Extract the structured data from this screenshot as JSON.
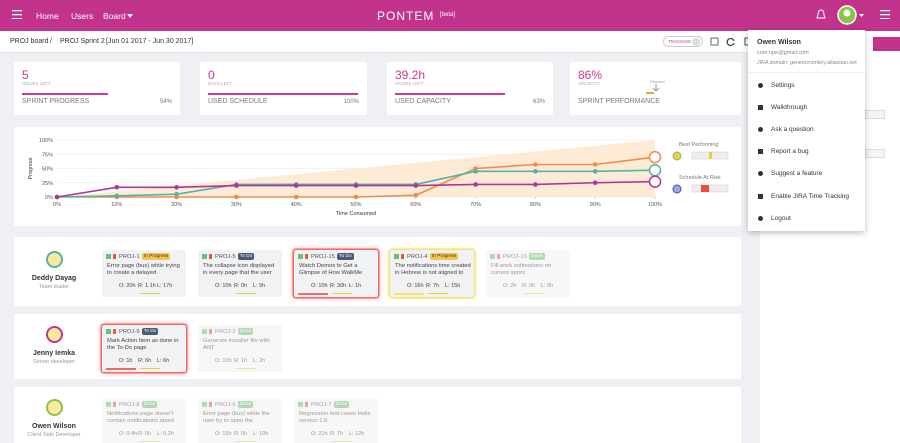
{
  "nav": {
    "items": [
      "Home",
      "Users",
      "Board"
    ],
    "logo": "PONTEM",
    "badge": "[beta]"
  },
  "breadcrumb": {
    "board": "PROJ board",
    "separator": "/",
    "sprint": "PROJ Sprint 2",
    "dates": "[Jun 01 2017 - Jun 30 2017]",
    "tracking": "TRACKING"
  },
  "stats": [
    {
      "value": "5",
      "caption": "ISSUES LEFT",
      "label": "SPRINT PROGRESS",
      "percent": "54%"
    },
    {
      "value": "0",
      "caption": "DAYS LEFT",
      "label": "USED SCHEDULE",
      "percent": "100%"
    },
    {
      "value": "39.2h",
      "caption": "HOURS LEFT",
      "label": "USED CAPACITY",
      "percent": "63%"
    },
    {
      "value": "86%",
      "caption": "VELOCITY",
      "label": "SPRINT PERFORMANCE",
      "note": "Planned"
    }
  ],
  "chart_data": {
    "type": "line",
    "xlabel": "Time Consumed",
    "ylabel": "Progress",
    "x": [
      0,
      10,
      20,
      30,
      40,
      50,
      60,
      70,
      80,
      90,
      100
    ],
    "xlim": [
      0,
      100
    ],
    "ylim": [
      0,
      100
    ],
    "xticks": [
      {
        "value": 0,
        "label": "0%"
      },
      {
        "value": 10,
        "label": "10%"
      },
      {
        "value": 20,
        "label": "20%"
      },
      {
        "value": 30,
        "label": "30%"
      },
      {
        "value": 40,
        "label": "40%"
      },
      {
        "value": 50,
        "label": "50%"
      },
      {
        "value": 60,
        "label": "60%"
      },
      {
        "value": 70,
        "label": "70%"
      },
      {
        "value": 80,
        "label": "80%"
      },
      {
        "value": 90,
        "label": "90%"
      },
      {
        "value": 100,
        "label": "100%"
      }
    ],
    "yticks": [
      {
        "value": 0,
        "label": "0%"
      },
      {
        "value": 25,
        "label": "25%"
      },
      {
        "value": 50,
        "label": "50%"
      },
      {
        "value": 75,
        "label": "75%"
      },
      {
        "value": 100,
        "label": "100%"
      }
    ],
    "planned": {
      "color": "#fce3c4",
      "values": [
        0,
        10,
        20,
        30,
        40,
        50,
        60,
        70,
        80,
        90,
        100
      ]
    },
    "series": [
      {
        "color": "#f28c4d",
        "values": [
          0,
          0,
          0,
          0,
          0,
          0,
          3,
          50,
          57,
          57,
          70
        ]
      },
      {
        "color": "#4db6a4",
        "values": [
          0,
          2,
          5,
          22,
          22,
          22,
          22,
          45,
          45,
          45,
          47
        ]
      },
      {
        "color": "#b0359a",
        "values": [
          0,
          17,
          17,
          20,
          20,
          20,
          20,
          22,
          22,
          25,
          27
        ]
      }
    ]
  },
  "side": {
    "best": "Best Performing",
    "risk": "Schedule At Risk"
  },
  "team": [
    {
      "name": "Deddy Dayag",
      "role": "Team leader",
      "cards": [
        {
          "key": "PROJ-1",
          "status": "In Progress",
          "title": "Error page (bus) while trying to create a delayed",
          "times": [
            "O: 20h",
            "R: 1.1h",
            "L: 17h"
          ]
        },
        {
          "key": "PROJ-5",
          "status": "To Do",
          "title": "The collapse icon displayed in every page that the user didi",
          "times": [
            "O: 10h",
            "R: 0h",
            "L: 5h"
          ]
        },
        {
          "key": "PROJ-15",
          "status": "To Do",
          "title": "Watch Demos to Get a Glimpse of How WalkMe",
          "times": [
            "O: 10h",
            "R: 30h",
            "L: 1h"
          ],
          "highlight": "#f06a6a"
        },
        {
          "key": "PROJ-4",
          "status": "In Progress",
          "title": "The notifications time created in Hebrew is not aligned to",
          "times": [
            "O: 16h",
            "R: 7h",
            "L: 15h"
          ],
          "highlight": "#f5e27a"
        },
        {
          "key": "PROJ-16",
          "status": "Done",
          "title": "Fill work estimations on current sprint",
          "times": [
            "O: 2h",
            "R: 0h",
            "L: 0h"
          ]
        }
      ]
    },
    {
      "name": "Jenny Iemka",
      "role": "Server developer",
      "cards": [
        {
          "key": "PROJ-9",
          "status": "To Do",
          "title": "Mark Action Item as done in the To-Do page",
          "times": [
            "O: 1h",
            "R: 6h",
            "L: 6h"
          ],
          "highlight": "#f06a6a"
        },
        {
          "key": "PROJ-2",
          "status": "Done",
          "title": "Generate installer file with ANT",
          "times": [
            "O: 10h",
            "R: 1h",
            "L: 2h"
          ]
        }
      ]
    },
    {
      "name": "Owen Wilson",
      "role": "Client Side Developer",
      "cards": [
        {
          "key": "PROJ-8",
          "status": "Done",
          "title": "Notifications page doesn't contain notifications about",
          "times": [
            "O: 0.4h",
            "R: 0h",
            "L: 0.2h"
          ]
        },
        {
          "key": "PROJ-6",
          "status": "Done",
          "title": "Error page (bus) while the user try to open the",
          "times": [
            "O: 15h",
            "R: 0h",
            "L: 10h"
          ]
        },
        {
          "key": "PROJ-7",
          "status": "Done",
          "title": "Regression test cases Helix version 1.8",
          "times": [
            "O: 21h",
            "R: 7h",
            "L: 12h"
          ]
        }
      ]
    }
  ],
  "menu": {
    "name": "Owen Wilson",
    "email": "com.npe@gmail.com",
    "domain": "JIRA domain: genericmonkey.atlassian.net",
    "items": [
      "Settings",
      "Walkthrough",
      "Ask a question",
      "Report a bug",
      "Suggest a feature",
      "Enable JIRA Time Tracking",
      "Logout"
    ]
  }
}
